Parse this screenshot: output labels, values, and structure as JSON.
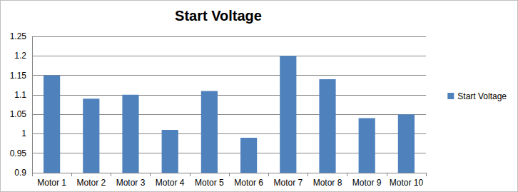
{
  "chart_data": {
    "type": "bar",
    "title": "Start Voltage",
    "categories": [
      "Motor 1",
      "Motor 2",
      "Motor 3",
      "Motor 4",
      "Motor 5",
      "Motor 6",
      "Motor 7",
      "Motor 8",
      "Motor 9",
      "Motor 10"
    ],
    "series": [
      {
        "name": "Start Voltage",
        "color": "#4f81bd",
        "values": [
          1.15,
          1.09,
          1.1,
          1.01,
          1.11,
          0.99,
          1.2,
          1.14,
          1.04,
          1.05
        ]
      }
    ],
    "ylim": [
      0.9,
      1.25
    ],
    "yticks": [
      0.9,
      0.95,
      1,
      1.05,
      1.1,
      1.15,
      1.2,
      1.25
    ],
    "grid": true,
    "legend": "right"
  }
}
